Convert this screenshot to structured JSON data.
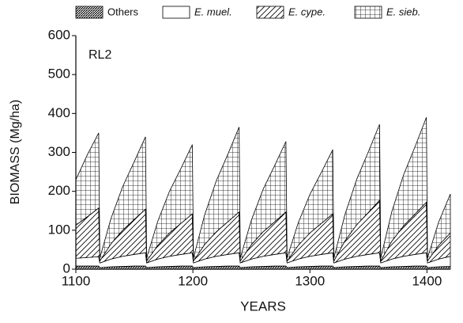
{
  "chart_data": {
    "type": "stacked_area",
    "annotation": "RL2",
    "x_label": "YEARS",
    "y_label": "BIOMASS (Mg/ha)",
    "xlim": [
      1100,
      1420
    ],
    "xticks": [
      1100,
      1200,
      1300,
      1400
    ],
    "ylim": [
      0,
      600
    ],
    "yticks": [
      0,
      100,
      200,
      300,
      400,
      500,
      600
    ],
    "x": [
      1100,
      1110,
      1119.5,
      1120.5,
      1130,
      1140,
      1150,
      1159.5,
      1160.5,
      1170,
      1180,
      1190,
      1199.5,
      1200.5,
      1210,
      1220,
      1230,
      1239.5,
      1240.5,
      1250,
      1260,
      1270,
      1279.5,
      1280.5,
      1290,
      1300,
      1310,
      1319.5,
      1320.5,
      1330,
      1340,
      1350,
      1359.5,
      1360.5,
      1370,
      1380,
      1390,
      1399.5,
      1400.5,
      1410,
      1420
    ],
    "series": [
      {
        "name": "Others",
        "pattern": "dense",
        "italic": false,
        "values": [
          8,
          8,
          8,
          4,
          6,
          7,
          8,
          8,
          4,
          6,
          7,
          8,
          8,
          4,
          6,
          7,
          8,
          8,
          4,
          6,
          7,
          8,
          8,
          4,
          6,
          7,
          8,
          8,
          4,
          6,
          7,
          8,
          8,
          4,
          6,
          7,
          8,
          8,
          4,
          6,
          7
        ]
      },
      {
        "name": "E. muel.",
        "pattern": "none",
        "italic": true,
        "values": [
          20,
          22,
          24,
          12,
          20,
          26,
          30,
          34,
          12,
          20,
          26,
          30,
          34,
          12,
          20,
          26,
          30,
          34,
          12,
          20,
          26,
          30,
          34,
          12,
          20,
          26,
          30,
          34,
          12,
          20,
          26,
          30,
          34,
          12,
          20,
          26,
          30,
          34,
          12,
          20,
          26
        ]
      },
      {
        "name": "E. cype.",
        "pattern": "diagonal",
        "italic": true,
        "values": [
          85,
          105,
          125,
          5,
          39,
          67,
          90,
          112,
          5,
          35,
          60,
          80,
          100,
          5,
          37,
          63,
          84,
          105,
          5,
          37,
          63,
          84,
          105,
          5,
          35,
          60,
          80,
          100,
          5,
          47,
          81,
          108,
          135,
          5,
          46,
          78,
          104,
          130,
          5,
          35,
          60
        ]
      },
      {
        "name": "E. sieb.",
        "pattern": "grid",
        "italic": true,
        "values": [
          117,
          160,
          193,
          8,
          65,
          112,
          149,
          186,
          8,
          62,
          107,
          142,
          178,
          8,
          76,
          131,
          174,
          218,
          8,
          63,
          109,
          145,
          181,
          8,
          58,
          99,
          132,
          165,
          8,
          68,
          117,
          156,
          195,
          8,
          76,
          131,
          174,
          218,
          8,
          60,
          100
        ]
      }
    ]
  }
}
